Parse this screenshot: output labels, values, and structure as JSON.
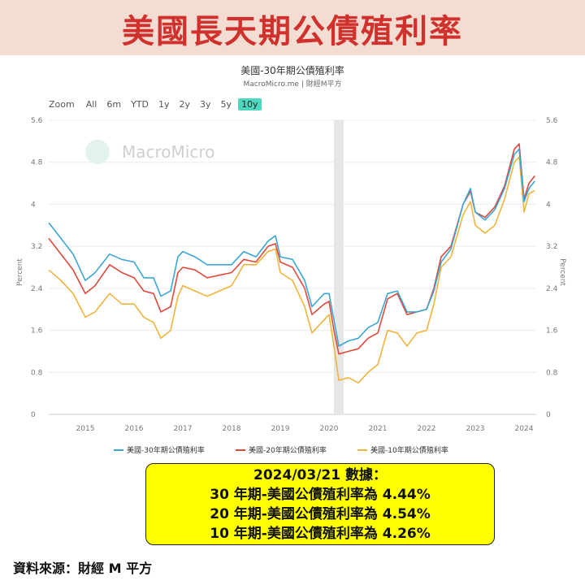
{
  "header": {
    "title": "美國長天期公債殖利率"
  },
  "chart_header": {
    "title": "美國-30年期公債殖利率",
    "subtitle": "MacroMicro.me | 財經M平方"
  },
  "zoom": {
    "label": "Zoom",
    "options": [
      "All",
      "6m",
      "YTD",
      "1y",
      "2y",
      "3y",
      "5y",
      "10y"
    ],
    "active": "10y"
  },
  "watermark": "MacroMicro",
  "info_box": {
    "line1": "2024/03/21 數據：",
    "line2": "30 年期-美國公債殖利率為 4.44%",
    "line3": "20 年期-美國公債殖利率為 4.54%",
    "line4": "10 年期-美國公債殖利率為 4.26%"
  },
  "footer": {
    "source": "資料來源：財經 M 平方"
  },
  "chart_data": {
    "type": "line",
    "ylabel_left": "Percent",
    "ylabel_right": "Percent",
    "ylim": [
      0,
      5.6
    ],
    "yticks": [
      0,
      0.8,
      1.6,
      2.4,
      3.2,
      4,
      4.8,
      5.6
    ],
    "xlim": [
      2014.25,
      2024.25
    ],
    "xticks": [
      2015,
      2016,
      2017,
      2018,
      2019,
      2020,
      2021,
      2022,
      2023,
      2024
    ],
    "recession_band": [
      2020.1,
      2020.3
    ],
    "grid": true,
    "legend_position": "bottom",
    "colors": {
      "s30": "#3aa7d6",
      "s20": "#e0483a",
      "s10": "#f0b43c"
    },
    "series": [
      {
        "name": "美國-30年期公債殖利率",
        "key": "s30",
        "x": [
          2014.25,
          2014.5,
          2014.75,
          2015.0,
          2015.2,
          2015.5,
          2015.75,
          2016.0,
          2016.2,
          2016.4,
          2016.55,
          2016.75,
          2016.9,
          2017.0,
          2017.25,
          2017.5,
          2017.75,
          2018.0,
          2018.25,
          2018.5,
          2018.75,
          2018.9,
          2019.0,
          2019.25,
          2019.5,
          2019.65,
          2019.9,
          2020.0,
          2020.1,
          2020.2,
          2020.4,
          2020.6,
          2020.8,
          2021.0,
          2021.2,
          2021.4,
          2021.6,
          2021.8,
          2022.0,
          2022.15,
          2022.3,
          2022.5,
          2022.75,
          2022.9,
          2023.0,
          2023.2,
          2023.4,
          2023.6,
          2023.8,
          2023.9,
          2024.0,
          2024.1,
          2024.22
        ],
        "y": [
          3.65,
          3.35,
          3.05,
          2.55,
          2.7,
          3.05,
          2.95,
          2.9,
          2.6,
          2.6,
          2.25,
          2.35,
          3.0,
          3.1,
          3.0,
          2.85,
          2.85,
          2.85,
          3.1,
          3.0,
          3.3,
          3.4,
          3.0,
          2.95,
          2.55,
          2.05,
          2.3,
          2.3,
          1.8,
          1.3,
          1.4,
          1.45,
          1.65,
          1.75,
          2.3,
          2.35,
          1.95,
          1.95,
          2.0,
          2.35,
          2.9,
          3.15,
          4.0,
          4.3,
          3.85,
          3.7,
          3.9,
          4.3,
          4.95,
          5.05,
          4.05,
          4.3,
          4.44
        ]
      },
      {
        "name": "美國-20年期公債殖利率",
        "key": "s20",
        "x": [
          2014.25,
          2014.5,
          2014.75,
          2015.0,
          2015.2,
          2015.5,
          2015.75,
          2016.0,
          2016.2,
          2016.4,
          2016.55,
          2016.75,
          2016.9,
          2017.0,
          2017.25,
          2017.5,
          2017.75,
          2018.0,
          2018.25,
          2018.5,
          2018.75,
          2018.9,
          2019.0,
          2019.25,
          2019.5,
          2019.65,
          2019.9,
          2020.0,
          2020.1,
          2020.2,
          2020.4,
          2020.6,
          2020.8,
          2021.0,
          2021.2,
          2021.4,
          2021.6,
          2021.8,
          2022.0,
          2022.15,
          2022.3,
          2022.5,
          2022.75,
          2022.9,
          2023.0,
          2023.2,
          2023.4,
          2023.6,
          2023.8,
          2023.9,
          2024.0,
          2024.1,
          2024.22
        ],
        "y": [
          3.35,
          3.05,
          2.75,
          2.3,
          2.45,
          2.85,
          2.7,
          2.6,
          2.35,
          2.3,
          1.95,
          2.05,
          2.7,
          2.8,
          2.75,
          2.6,
          2.65,
          2.7,
          2.95,
          2.9,
          3.2,
          3.25,
          2.9,
          2.8,
          2.4,
          1.9,
          2.1,
          2.15,
          1.6,
          1.15,
          1.2,
          1.25,
          1.45,
          1.55,
          2.2,
          2.3,
          1.9,
          1.95,
          2.0,
          2.4,
          3.0,
          3.2,
          4.0,
          4.25,
          3.85,
          3.75,
          3.95,
          4.35,
          5.05,
          5.15,
          4.1,
          4.4,
          4.54
        ]
      },
      {
        "name": "美國-10年期公債殖利率",
        "key": "s10",
        "x": [
          2014.25,
          2014.5,
          2014.75,
          2015.0,
          2015.2,
          2015.5,
          2015.75,
          2016.0,
          2016.2,
          2016.4,
          2016.55,
          2016.75,
          2016.9,
          2017.0,
          2017.25,
          2017.5,
          2017.75,
          2018.0,
          2018.25,
          2018.5,
          2018.75,
          2018.9,
          2019.0,
          2019.25,
          2019.5,
          2019.65,
          2019.9,
          2020.0,
          2020.1,
          2020.2,
          2020.4,
          2020.6,
          2020.8,
          2021.0,
          2021.2,
          2021.4,
          2021.6,
          2021.8,
          2022.0,
          2022.15,
          2022.3,
          2022.5,
          2022.75,
          2022.9,
          2023.0,
          2023.2,
          2023.4,
          2023.6,
          2023.8,
          2023.9,
          2024.0,
          2024.1,
          2024.22
        ],
        "y": [
          2.75,
          2.55,
          2.3,
          1.85,
          1.95,
          2.3,
          2.1,
          2.1,
          1.85,
          1.75,
          1.45,
          1.6,
          2.25,
          2.45,
          2.35,
          2.25,
          2.35,
          2.45,
          2.85,
          2.85,
          3.1,
          3.15,
          2.7,
          2.55,
          2.05,
          1.55,
          1.8,
          1.9,
          1.3,
          0.65,
          0.7,
          0.6,
          0.8,
          0.95,
          1.6,
          1.55,
          1.3,
          1.55,
          1.6,
          2.1,
          2.8,
          3.0,
          3.8,
          4.05,
          3.6,
          3.45,
          3.6,
          4.1,
          4.8,
          4.9,
          3.85,
          4.2,
          4.26
        ]
      }
    ]
  }
}
